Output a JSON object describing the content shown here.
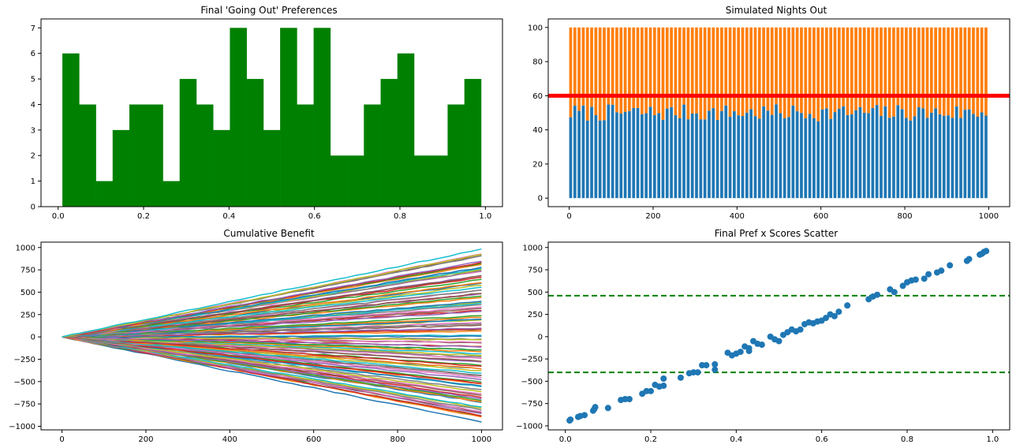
{
  "chart_data": [
    {
      "id": "hist",
      "type": "bar",
      "title": "Final 'Going Out' Preferences",
      "color": "#008000",
      "bin_start": 0.01,
      "bin_width": 0.0392,
      "counts": [
        6,
        4,
        1,
        3,
        4,
        4,
        1,
        5,
        4,
        3,
        7,
        5,
        3,
        7,
        4,
        7,
        2,
        2,
        4,
        5,
        6,
        2,
        2,
        4,
        5
      ],
      "xlim": [
        -0.04,
        1.04
      ],
      "ylim": [
        0,
        7.35
      ],
      "xticks": [
        0.0,
        0.2,
        0.4,
        0.6,
        0.8,
        1.0
      ],
      "xtick_labels": [
        "0.0",
        "0.2",
        "0.4",
        "0.6",
        "0.8",
        "1.0"
      ],
      "yticks": [
        0,
        1,
        2,
        3,
        4,
        5,
        6,
        7
      ],
      "ytick_labels": [
        "0",
        "1",
        "2",
        "3",
        "4",
        "5",
        "6",
        "7"
      ]
    },
    {
      "id": "nights",
      "type": "bar",
      "title": "Simulated Nights Out",
      "bar_count": 100,
      "bar_step": 10,
      "bar_width": 7,
      "stack_total": 100,
      "base_mean": 50,
      "base_spread": 5,
      "colors": {
        "attended": "#1f77b4",
        "remainder": "#ff7f0e",
        "threshold": "#ff0000"
      },
      "threshold": 60,
      "xlim": [
        -50,
        1050
      ],
      "ylim": [
        -5,
        105
      ],
      "xticks": [
        0,
        200,
        400,
        600,
        800,
        1000
      ],
      "xtick_labels": [
        "0",
        "200",
        "400",
        "600",
        "800",
        "1000"
      ],
      "yticks": [
        0,
        20,
        40,
        60,
        80,
        100
      ],
      "ytick_labels": [
        "0",
        "20",
        "40",
        "60",
        "80",
        "100"
      ]
    },
    {
      "id": "cumulative",
      "type": "line",
      "title": "Cumulative Benefit",
      "x_end": 1000,
      "line_count": 100,
      "final_min": -940,
      "final_max": 965,
      "palette": [
        "#1f77b4",
        "#ff7f0e",
        "#2ca02c",
        "#d62728",
        "#9467bd",
        "#8c564b",
        "#e377c2",
        "#7f7f7f",
        "#bcbd22",
        "#17becf"
      ],
      "xlim": [
        -50,
        1050
      ],
      "ylim": [
        -1040,
        1060
      ],
      "xticks": [
        0,
        200,
        400,
        600,
        800,
        1000
      ],
      "xtick_labels": [
        "0",
        "200",
        "400",
        "600",
        "800",
        "1000"
      ],
      "yticks": [
        -1000,
        -750,
        -500,
        -250,
        0,
        250,
        500,
        750,
        1000
      ],
      "ytick_labels": [
        "−1000",
        "−750",
        "−500",
        "−250",
        "0",
        "250",
        "500",
        "750",
        "1000"
      ]
    },
    {
      "id": "scatter",
      "type": "scatter",
      "title": "Final Pref x Scores Scatter",
      "point_color": "#1f77b4",
      "line_color": "#008000",
      "hlines": [
        460,
        -400
      ],
      "x": [
        0.01,
        0.012,
        0.03,
        0.035,
        0.045,
        0.065,
        0.068,
        0.07,
        0.1,
        0.13,
        0.14,
        0.15,
        0.18,
        0.19,
        0.2,
        0.21,
        0.22,
        0.23,
        0.23,
        0.27,
        0.29,
        0.3,
        0.31,
        0.32,
        0.33,
        0.35,
        0.35,
        0.38,
        0.39,
        0.4,
        0.41,
        0.42,
        0.43,
        0.43,
        0.44,
        0.45,
        0.46,
        0.48,
        0.49,
        0.5,
        0.51,
        0.52,
        0.53,
        0.54,
        0.55,
        0.56,
        0.57,
        0.58,
        0.59,
        0.6,
        0.61,
        0.62,
        0.63,
        0.64,
        0.66,
        0.71,
        0.72,
        0.73,
        0.76,
        0.77,
        0.79,
        0.8,
        0.81,
        0.82,
        0.84,
        0.85,
        0.87,
        0.88,
        0.9,
        0.94,
        0.945,
        0.97,
        0.975,
        0.98,
        0.985
      ],
      "y": [
        -940,
        -930,
        -900,
        -890,
        -880,
        -830,
        -810,
        -790,
        -800,
        -710,
        -700,
        -700,
        -640,
        -610,
        -610,
        -540,
        -560,
        -550,
        -470,
        -460,
        -410,
        -400,
        -400,
        -320,
        -320,
        -310,
        -370,
        -180,
        -210,
        -190,
        -170,
        -110,
        -130,
        -160,
        -50,
        -80,
        -90,
        0,
        -30,
        -50,
        20,
        50,
        80,
        60,
        80,
        140,
        160,
        150,
        170,
        180,
        210,
        250,
        230,
        280,
        350,
        420,
        450,
        470,
        530,
        500,
        570,
        610,
        630,
        640,
        650,
        700,
        720,
        740,
        800,
        850,
        870,
        920,
        930,
        950,
        960
      ],
      "xlim": [
        -0.04,
        1.04
      ],
      "ylim": [
        -1045,
        1060
      ],
      "xticks": [
        0.0,
        0.2,
        0.4,
        0.6,
        0.8,
        1.0
      ],
      "xtick_labels": [
        "0.0",
        "0.2",
        "0.4",
        "0.6",
        "0.8",
        "1.0"
      ],
      "yticks": [
        -1000,
        -750,
        -500,
        -250,
        0,
        250,
        500,
        750,
        1000
      ],
      "ytick_labels": [
        "−1000",
        "−750",
        "−500",
        "−250",
        "0",
        "250",
        "500",
        "750",
        "1000"
      ]
    }
  ]
}
